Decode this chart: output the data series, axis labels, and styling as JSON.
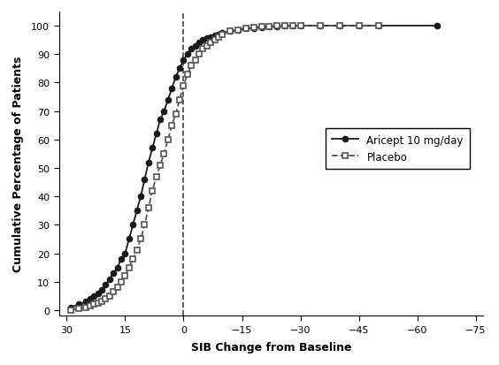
{
  "title": "",
  "xlabel": "SIB Change from Baseline",
  "ylabel": "Cumulative Percentage of Patients",
  "xlim": [
    32,
    -77
  ],
  "ylim": [
    -2,
    105
  ],
  "xticks": [
    30,
    15,
    0,
    -15,
    -30,
    -45,
    -60,
    -75
  ],
  "yticks": [
    0,
    10,
    20,
    30,
    40,
    50,
    60,
    70,
    80,
    90,
    100
  ],
  "vline_x": 0,
  "aricept_color": "#1a1a1a",
  "placebo_color": "#555555",
  "legend_labels": [
    "Aricept 10 mg/day",
    "Placebo"
  ],
  "aricept_x": [
    29,
    27,
    25,
    24,
    23,
    22,
    21,
    20,
    19,
    18,
    17,
    16,
    15,
    14,
    13,
    12,
    11,
    10,
    9,
    8,
    7,
    6,
    5,
    4,
    3,
    2,
    1,
    0,
    -1,
    -2,
    -3,
    -4,
    -5,
    -6,
    -7,
    -8,
    -9,
    -10,
    -12,
    -14,
    -16,
    -18,
    -20,
    -22,
    -24,
    -26,
    -28,
    -30,
    -35,
    -40,
    -45,
    -50,
    -65
  ],
  "aricept_y": [
    1,
    2,
    3,
    4,
    5,
    6,
    7,
    9,
    11,
    13,
    15,
    18,
    20,
    25,
    30,
    35,
    40,
    46,
    52,
    57,
    62,
    67,
    70,
    74,
    78,
    82,
    85,
    88,
    90,
    92,
    93,
    94,
    95,
    95.5,
    96,
    96.5,
    97,
    97.5,
    98,
    98.5,
    99,
    99.2,
    99.5,
    99.7,
    99.8,
    99.9,
    99.95,
    100,
    100,
    100,
    100,
    100,
    100
  ],
  "placebo_x": [
    29,
    27,
    25,
    24,
    23,
    22,
    21,
    20,
    19,
    18,
    17,
    16,
    15,
    14,
    13,
    12,
    11,
    10,
    9,
    8,
    7,
    6,
    5,
    4,
    3,
    2,
    1,
    0,
    -1,
    -2,
    -3,
    -4,
    -5,
    -6,
    -7,
    -8,
    -9,
    -10,
    -12,
    -14,
    -16,
    -18,
    -20,
    -22,
    -24,
    -26,
    -28,
    -30,
    -35,
    -40,
    -45,
    -50
  ],
  "placebo_y": [
    0,
    0.5,
    1,
    1.5,
    2,
    2.5,
    3,
    4,
    5,
    6.5,
    8,
    10,
    12,
    15,
    18,
    21,
    25,
    30,
    36,
    42,
    47,
    51,
    55,
    60,
    65,
    69,
    74,
    79,
    83,
    86,
    88,
    90,
    92,
    93,
    94,
    95,
    96,
    97,
    98,
    98.5,
    99,
    99.5,
    99.7,
    99.8,
    99.9,
    99.95,
    100,
    100,
    100,
    100,
    100,
    100
  ]
}
